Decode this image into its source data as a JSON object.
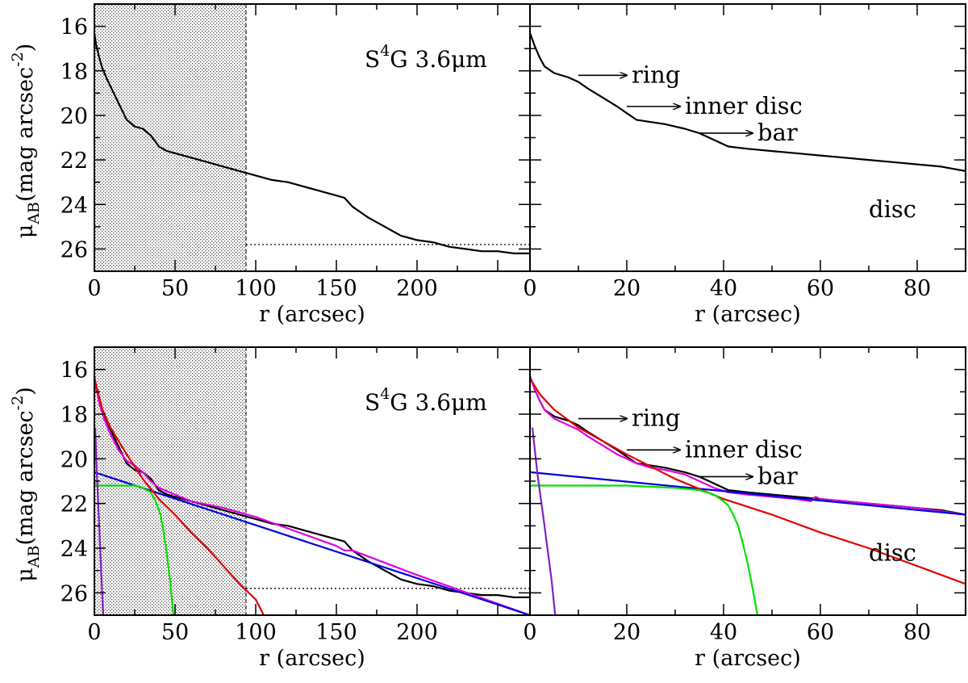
{
  "chart_data": [
    {
      "type": "line",
      "panel": "top-left",
      "annotation": {
        "base": "S",
        "sup": "4",
        "rest": "G 3.6μm"
      },
      "xlabel": "r (arcsec)",
      "ylabel": {
        "mu": "μ",
        "sub": "AB",
        "units": "(mag arcsec",
        "exp": "-2",
        "close": ")"
      },
      "xlim": [
        0,
        270
      ],
      "ylim": [
        27,
        15
      ],
      "xticks": [
        0,
        50,
        100,
        150,
        200
      ],
      "yticks": [
        16,
        18,
        20,
        22,
        24,
        26
      ],
      "shaded_region": [
        0,
        94
      ],
      "sky_level": 25.8,
      "series": [
        {
          "color": "#000000",
          "x": [
            0,
            1,
            3,
            5,
            8,
            12,
            16,
            20,
            25,
            30,
            35,
            40,
            45,
            50,
            60,
            70,
            80,
            90,
            100,
            110,
            120,
            130,
            140,
            150,
            155,
            160,
            170,
            180,
            190,
            200,
            210,
            215,
            220,
            230,
            240,
            250,
            260,
            270
          ],
          "y": [
            16.3,
            16.8,
            17.4,
            17.9,
            18.4,
            19.0,
            19.6,
            20.2,
            20.5,
            20.6,
            20.9,
            21.4,
            21.6,
            21.7,
            21.9,
            22.1,
            22.3,
            22.5,
            22.7,
            22.9,
            23.0,
            23.2,
            23.4,
            23.6,
            23.7,
            24.1,
            24.6,
            25.0,
            25.4,
            25.6,
            25.7,
            25.8,
            25.9,
            26.0,
            26.1,
            26.1,
            26.2,
            26.2
          ]
        }
      ]
    },
    {
      "type": "line",
      "panel": "top-right",
      "xlabel": "r (arcsec)",
      "xlim": [
        0,
        90
      ],
      "ylim": [
        27,
        15
      ],
      "xticks": [
        0,
        20,
        40,
        60,
        80
      ],
      "annotations": [
        {
          "label": "ring",
          "x_from": 10,
          "x_to": 20,
          "y": 18.2
        },
        {
          "label": "inner disc",
          "x_from": 20,
          "x_to": 31,
          "y": 19.6
        },
        {
          "label": "bar",
          "x_from": 35,
          "x_to": 46,
          "y": 20.8
        },
        {
          "label": "disc",
          "x": 70,
          "y": 24.2
        }
      ],
      "series": [
        {
          "color": "#000000",
          "x": [
            0,
            1,
            2,
            3,
            5,
            8,
            10,
            12,
            15,
            18,
            20,
            22,
            25,
            28,
            32,
            35,
            38,
            41,
            45,
            50,
            55,
            60,
            65,
            70,
            75,
            80,
            85,
            90
          ],
          "y": [
            16.3,
            16.9,
            17.4,
            17.8,
            18.1,
            18.3,
            18.5,
            18.8,
            19.2,
            19.6,
            19.9,
            20.2,
            20.3,
            20.4,
            20.6,
            20.8,
            21.1,
            21.4,
            21.5,
            21.6,
            21.7,
            21.8,
            21.9,
            22.0,
            22.1,
            22.2,
            22.3,
            22.5
          ]
        }
      ]
    },
    {
      "type": "line",
      "panel": "bottom-left",
      "annotation": {
        "base": "S",
        "sup": "4",
        "rest": "G 3.6μm"
      },
      "xlabel": "r (arcsec)",
      "ylabel": {
        "mu": "μ",
        "sub": "AB",
        "units": "(mag arcsec",
        "exp": "-2",
        "close": ")"
      },
      "xlim": [
        0,
        270
      ],
      "ylim": [
        27,
        15
      ],
      "xticks": [
        0,
        50,
        100,
        150,
        200
      ],
      "yticks": [
        16,
        18,
        20,
        22,
        24,
        26
      ],
      "shaded_region": [
        0,
        94
      ],
      "sky_level": 25.8,
      "series": [
        {
          "color": "#000000",
          "x": [
            0,
            1,
            3,
            5,
            8,
            12,
            16,
            20,
            25,
            30,
            35,
            40,
            45,
            50,
            60,
            70,
            80,
            90,
            100,
            110,
            120,
            130,
            140,
            150,
            155,
            160,
            170,
            180,
            190,
            200,
            210,
            215,
            220,
            230,
            240,
            250,
            260,
            270
          ],
          "y": [
            16.3,
            16.8,
            17.4,
            17.9,
            18.4,
            19.0,
            19.6,
            20.2,
            20.5,
            20.6,
            20.9,
            21.4,
            21.6,
            21.7,
            21.9,
            22.1,
            22.3,
            22.5,
            22.7,
            22.9,
            23.0,
            23.2,
            23.4,
            23.6,
            23.7,
            24.1,
            24.6,
            25.0,
            25.4,
            25.6,
            25.7,
            25.8,
            25.9,
            26.0,
            26.1,
            26.1,
            26.2,
            26.2
          ]
        },
        {
          "color": "#e000e0",
          "x": [
            0,
            3,
            6,
            10,
            15,
            20,
            25,
            30,
            35,
            40,
            50,
            60,
            80,
            100,
            150,
            155,
            160,
            200,
            270
          ],
          "y": [
            16.3,
            17.5,
            18.2,
            18.9,
            19.6,
            20.1,
            20.3,
            20.6,
            21.0,
            21.3,
            21.6,
            21.9,
            22.2,
            22.6,
            23.9,
            24.1,
            24.1,
            25.2,
            27.0
          ]
        },
        {
          "color": "#0000e0",
          "x": [
            0,
            270
          ],
          "y": [
            20.6,
            27.0
          ]
        },
        {
          "color": "#e00000",
          "x": [
            0,
            5,
            10,
            20,
            30,
            40,
            50,
            60,
            70,
            80,
            90,
            100,
            105
          ],
          "y": [
            16.4,
            17.8,
            18.6,
            19.8,
            20.9,
            21.8,
            22.5,
            23.3,
            24.0,
            24.8,
            25.6,
            26.3,
            27.0
          ]
        },
        {
          "color": "#00e000",
          "x": [
            0,
            25,
            30,
            35,
            38,
            41,
            43,
            45,
            47,
            49
          ],
          "y": [
            21.2,
            21.2,
            21.3,
            21.5,
            21.9,
            22.5,
            23.3,
            24.3,
            25.5,
            27.0
          ]
        },
        {
          "color": "#8020c0",
          "x": [
            0.5,
            1.5,
            3,
            4.5,
            5.5
          ],
          "y": [
            18.6,
            20.6,
            23.0,
            25.5,
            27.0
          ]
        }
      ]
    },
    {
      "type": "line",
      "panel": "bottom-right",
      "xlabel": "r (arcsec)",
      "xlim": [
        0,
        90
      ],
      "ylim": [
        27,
        15
      ],
      "xticks": [
        0,
        20,
        40,
        60,
        80
      ],
      "annotations": [
        {
          "label": "ring",
          "x_from": 10,
          "x_to": 20,
          "y": 18.2
        },
        {
          "label": "inner disc",
          "x_from": 20,
          "x_to": 31,
          "y": 19.6
        },
        {
          "label": "bar",
          "x_from": 35,
          "x_to": 46,
          "y": 20.8
        },
        {
          "label": "disc",
          "x": 70,
          "y": 24.2
        }
      ],
      "series": [
        {
          "color": "#000000",
          "x": [
            0,
            1,
            2,
            3,
            5,
            8,
            10,
            12,
            15,
            18,
            20,
            22,
            25,
            28,
            32,
            35,
            38,
            41,
            45,
            50,
            55,
            60,
            65,
            70,
            75,
            80,
            85,
            90
          ],
          "y": [
            16.3,
            16.9,
            17.4,
            17.8,
            18.1,
            18.3,
            18.5,
            18.8,
            19.2,
            19.6,
            19.9,
            20.2,
            20.3,
            20.4,
            20.6,
            20.8,
            21.1,
            21.4,
            21.5,
            21.6,
            21.7,
            21.8,
            21.9,
            22.0,
            22.1,
            22.2,
            22.3,
            22.5
          ]
        },
        {
          "color": "#e000e0",
          "x": [
            0,
            1,
            2,
            3,
            5,
            8,
            10,
            12,
            15,
            18,
            20,
            22,
            25,
            28,
            32,
            35,
            38,
            41,
            45,
            50,
            55,
            58,
            59,
            60,
            70,
            80,
            90
          ],
          "y": [
            16.3,
            16.9,
            17.4,
            17.8,
            18.2,
            18.5,
            18.7,
            19.0,
            19.4,
            19.8,
            20.0,
            20.2,
            20.4,
            20.5,
            20.7,
            21.0,
            21.3,
            21.5,
            21.6,
            21.7,
            21.8,
            21.9,
            21.7,
            21.8,
            22.0,
            22.2,
            22.5
          ]
        },
        {
          "color": "#0000e0",
          "x": [
            0,
            90
          ],
          "y": [
            20.6,
            22.5
          ]
        },
        {
          "color": "#e00000",
          "x": [
            0,
            2,
            5,
            10,
            15,
            20,
            30,
            40,
            50,
            60,
            70,
            80,
            90
          ],
          "y": [
            16.4,
            17.1,
            17.8,
            18.6,
            19.2,
            19.8,
            20.9,
            21.8,
            22.5,
            23.3,
            24.0,
            24.8,
            25.6
          ]
        },
        {
          "color": "#00e000",
          "x": [
            0,
            20,
            30,
            35,
            38,
            40,
            41,
            42,
            43,
            44,
            45,
            46,
            47
          ],
          "y": [
            21.2,
            21.2,
            21.3,
            21.4,
            21.6,
            21.9,
            22.1,
            22.5,
            23.0,
            23.8,
            24.7,
            25.8,
            27.0
          ]
        },
        {
          "color": "#8020c0",
          "x": [
            0.5,
            1.5,
            3,
            4.5,
            5.2
          ],
          "y": [
            18.6,
            20.6,
            23.0,
            25.5,
            27.0
          ]
        }
      ]
    }
  ]
}
